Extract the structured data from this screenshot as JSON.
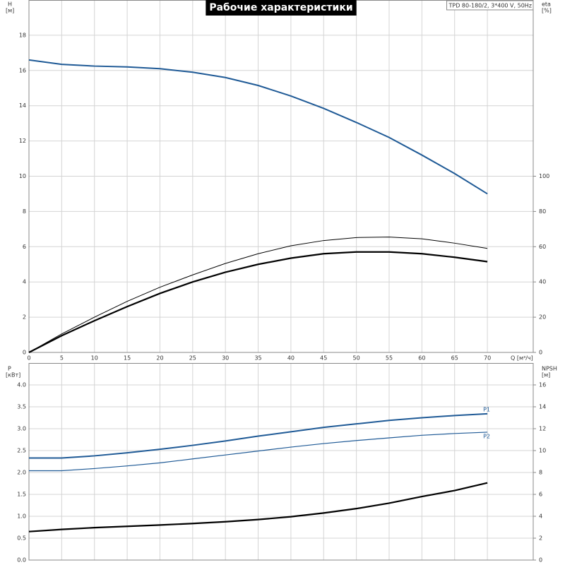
{
  "chart_data": [
    {
      "type": "line",
      "title": "Рабочие характеристики",
      "subtitle": "TPD 80-180/2, 3*400 V, 50Hz",
      "xlabel": "Q [м³/ч]",
      "ylabel": [
        "H",
        "[м]"
      ],
      "y2label": [
        "eta",
        "[%]"
      ],
      "x": [
        0,
        5,
        10,
        15,
        20,
        25,
        30,
        35,
        40,
        45,
        50,
        55,
        60,
        65,
        70
      ],
      "xlim": [
        0,
        77
      ],
      "xticks": [
        0,
        5,
        10,
        15,
        20,
        25,
        30,
        35,
        40,
        45,
        50,
        55,
        60,
        65,
        70
      ],
      "show_xtick_labels": true,
      "ylim": [
        0,
        20
      ],
      "yticks": [
        0,
        2,
        4,
        6,
        8,
        10,
        12,
        14,
        16,
        18
      ],
      "y2lim": [
        0,
        200
      ],
      "y2ticks": [
        0,
        20,
        40,
        60,
        80,
        100
      ],
      "grid": true,
      "series": [
        {
          "color": "#1f5a96",
          "width": 2,
          "values": [
            16.6,
            16.35,
            16.25,
            16.2,
            16.1,
            15.9,
            15.6,
            15.15,
            14.55,
            13.85,
            13.05,
            12.2,
            11.2,
            10.15,
            9.0
          ]
        },
        {
          "color": "#000000",
          "width": 1,
          "axis": "y2",
          "values": [
            0,
            10.5,
            20,
            29,
            37,
            44,
            50.5,
            56,
            60.5,
            63.5,
            65.2,
            65.5,
            64.5,
            62,
            59
          ]
        },
        {
          "color": "#000000",
          "width": 2.2,
          "axis": "y2",
          "values": [
            0,
            9.5,
            18,
            26,
            33.5,
            40,
            45.5,
            50,
            53.5,
            56,
            57,
            57,
            56,
            54,
            51.5
          ]
        }
      ]
    },
    {
      "type": "line",
      "ylabel": [
        "P",
        "[кВт]"
      ],
      "y2label": [
        "NPSH",
        "[м]"
      ],
      "x": [
        0,
        5,
        10,
        15,
        20,
        25,
        30,
        35,
        40,
        45,
        50,
        55,
        60,
        65,
        70
      ],
      "xlim": [
        0,
        77
      ],
      "xticks": [
        0,
        5,
        10,
        15,
        20,
        25,
        30,
        35,
        40,
        45,
        50,
        55,
        60,
        65,
        70
      ],
      "show_xtick_labels": false,
      "ylim": [
        0,
        4.5
      ],
      "yticks": [
        {
          "value": 0,
          "label": "0.0"
        },
        0.5,
        {
          "value": 1,
          "label": "1.0"
        },
        1.5,
        {
          "value": 2,
          "label": "2.0"
        },
        2.5,
        {
          "value": 3,
          "label": "3.0"
        },
        3.5,
        {
          "value": 4,
          "label": "4.0"
        }
      ],
      "y2lim": [
        0,
        18
      ],
      "y2ticks": [
        0,
        2,
        4,
        6,
        8,
        10,
        12,
        14,
        16
      ],
      "grid": true,
      "series": [
        {
          "name": "P1",
          "color": "#1f5a96",
          "width": 2,
          "values": [
            2.33,
            2.33,
            2.38,
            2.45,
            2.53,
            2.62,
            2.72,
            2.83,
            2.93,
            3.03,
            3.11,
            3.19,
            3.25,
            3.3,
            3.34
          ]
        },
        {
          "name": "P2",
          "color": "#1f5a96",
          "width": 1.2,
          "values": [
            2.04,
            2.04,
            2.09,
            2.15,
            2.22,
            2.31,
            2.4,
            2.49,
            2.58,
            2.66,
            2.73,
            2.79,
            2.85,
            2.89,
            2.92
          ]
        },
        {
          "color": "#000000",
          "width": 2.2,
          "axis": "y2",
          "values": [
            2.6,
            2.8,
            2.96,
            3.08,
            3.2,
            3.34,
            3.5,
            3.7,
            3.96,
            4.3,
            4.7,
            5.2,
            5.8,
            6.35,
            7.05
          ]
        }
      ]
    }
  ]
}
